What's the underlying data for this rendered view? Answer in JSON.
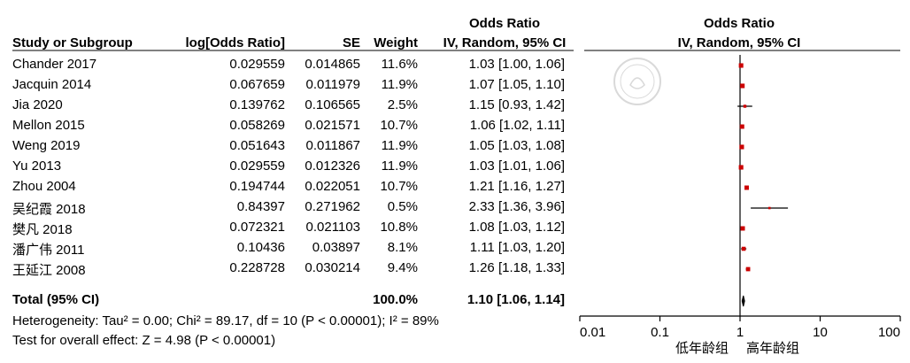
{
  "headers": {
    "or_top": "Odds Ratio",
    "or_method": "IV, Random, 95% CI",
    "plot_top": "Odds Ratio",
    "plot_method": "IV, Random, 95% CI",
    "study": "Study or Subgroup",
    "log_or": "log[Odds Ratio]",
    "se": "SE",
    "weight": "Weight"
  },
  "total": {
    "label": "Total (95% CI)",
    "weight": "100.0%",
    "ci": "1.10 [1.06, 1.14]"
  },
  "heterogeneity": "Heterogeneity: Tau² = 0.00; Chi² = 89.17, df = 10 (P < 0.00001); I² = 89%",
  "overall_effect": "Test for overall effect: Z = 4.98 (P < 0.00001)",
  "axis": {
    "ticks": [
      "0.01",
      "0.1",
      "1",
      "10",
      "100"
    ],
    "left_label": "低年龄组",
    "right_label": "高年龄组"
  },
  "watermark": "中华医学会",
  "colors": {
    "marker": "#cc0000",
    "line": "#000000"
  },
  "chart_data": {
    "type": "forest",
    "scale": "log",
    "xlim": [
      0.01,
      100
    ],
    "studies": [
      {
        "name": "Chander 2017",
        "log_or": "0.029559",
        "se": "0.014865",
        "weight": "11.6%",
        "ci": "1.03 [1.00, 1.06]",
        "or": 1.03,
        "lo": 1.0,
        "hi": 1.06,
        "w": 11.6
      },
      {
        "name": "Jacquin 2014",
        "log_or": "0.067659",
        "se": "0.011979",
        "weight": "11.9%",
        "ci": "1.07 [1.05, 1.10]",
        "or": 1.07,
        "lo": 1.05,
        "hi": 1.1,
        "w": 11.9
      },
      {
        "name": "Jia 2020",
        "log_or": "0.139762",
        "se": "0.106565",
        "weight": "2.5%",
        "ci": "1.15 [0.93, 1.42]",
        "or": 1.15,
        "lo": 0.93,
        "hi": 1.42,
        "w": 2.5
      },
      {
        "name": "Mellon 2015",
        "log_or": "0.058269",
        "se": "0.021571",
        "weight": "10.7%",
        "ci": "1.06 [1.02, 1.11]",
        "or": 1.06,
        "lo": 1.02,
        "hi": 1.11,
        "w": 10.7
      },
      {
        "name": "Weng 2019",
        "log_or": "0.051643",
        "se": "0.011867",
        "weight": "11.9%",
        "ci": "1.05 [1.03, 1.08]",
        "or": 1.05,
        "lo": 1.03,
        "hi": 1.08,
        "w": 11.9
      },
      {
        "name": "Yu 2013",
        "log_or": "0.029559",
        "se": "0.012326",
        "weight": "11.9%",
        "ci": "1.03 [1.01, 1.06]",
        "or": 1.03,
        "lo": 1.01,
        "hi": 1.06,
        "w": 11.9
      },
      {
        "name": "Zhou 2004",
        "log_or": "0.194744",
        "se": "0.022051",
        "weight": "10.7%",
        "ci": "1.21 [1.16, 1.27]",
        "or": 1.21,
        "lo": 1.16,
        "hi": 1.27,
        "w": 10.7
      },
      {
        "name": "吴纪霞 2018",
        "log_or": "0.84397",
        "se": "0.271962",
        "weight": "0.5%",
        "ci": "2.33 [1.36, 3.96]",
        "or": 2.33,
        "lo": 1.36,
        "hi": 3.96,
        "w": 0.5
      },
      {
        "name": "樊凡 2018",
        "log_or": "0.072321",
        "se": "0.021103",
        "weight": "10.8%",
        "ci": "1.08 [1.03, 1.12]",
        "or": 1.08,
        "lo": 1.03,
        "hi": 1.12,
        "w": 10.8
      },
      {
        "name": "潘广伟 2011",
        "log_or": "0.10436",
        "se": "0.03897",
        "weight": "8.1%",
        "ci": "1.11 [1.03, 1.20]",
        "or": 1.11,
        "lo": 1.03,
        "hi": 1.2,
        "w": 8.1
      },
      {
        "name": "王延江 2008",
        "log_or": "0.228728",
        "se": "0.030214",
        "weight": "9.4%",
        "ci": "1.26 [1.18, 1.33]",
        "or": 1.26,
        "lo": 1.18,
        "hi": 1.33,
        "w": 9.4
      }
    ],
    "pooled": {
      "or": 1.1,
      "lo": 1.06,
      "hi": 1.14
    }
  }
}
